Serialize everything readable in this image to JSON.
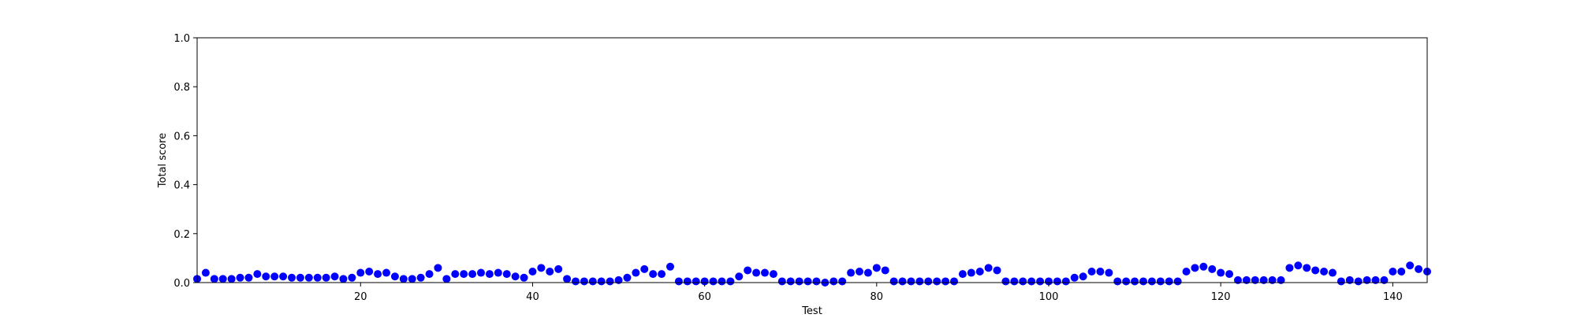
{
  "chart_data": {
    "type": "scatter",
    "title": "",
    "xlabel": "Test",
    "ylabel": "Total score",
    "xlim": [
      1,
      144
    ],
    "ylim": [
      0.0,
      1.0
    ],
    "xticks": [
      20,
      40,
      60,
      80,
      100,
      120,
      140
    ],
    "yticks": [
      0.0,
      0.2,
      0.4,
      0.6,
      0.8,
      1.0
    ],
    "xtick_labels": [
      "20",
      "40",
      "60",
      "80",
      "100",
      "120",
      "140"
    ],
    "ytick_labels": [
      "0.0",
      "0.2",
      "0.4",
      "0.6",
      "0.8",
      "1.0"
    ],
    "grid": false,
    "legend": "none",
    "marker_color": "#0000ff",
    "series": [
      {
        "x": [
          1,
          2,
          3,
          4,
          5,
          6,
          7,
          8,
          9,
          10,
          11,
          12,
          13,
          14,
          15,
          16,
          17,
          18,
          19,
          20,
          21,
          22,
          23,
          24,
          25,
          26,
          27,
          28,
          29,
          30,
          31,
          32,
          33,
          34,
          35,
          36,
          37,
          38,
          39,
          40,
          41,
          42,
          43,
          44,
          45,
          46,
          47,
          48,
          49,
          50,
          51,
          52,
          53,
          54,
          55,
          56,
          57,
          58,
          59,
          60,
          61,
          62,
          63,
          64,
          65,
          66,
          67,
          68,
          69,
          70,
          71,
          72,
          73,
          74,
          75,
          76,
          77,
          78,
          79,
          80,
          81,
          82,
          83,
          84,
          85,
          86,
          87,
          88,
          89,
          90,
          91,
          92,
          93,
          94,
          95,
          96,
          97,
          98,
          99,
          100,
          101,
          102,
          103,
          104,
          105,
          106,
          107,
          108,
          109,
          110,
          111,
          112,
          113,
          114,
          115,
          116,
          117,
          118,
          119,
          120,
          121,
          122,
          123,
          124,
          125,
          126,
          127,
          128,
          129,
          130,
          131,
          132,
          133,
          134,
          135,
          136,
          137,
          138,
          139,
          140,
          141,
          142,
          143,
          144
        ],
        "y": [
          0.015,
          0.04,
          0.015,
          0.015,
          0.015,
          0.02,
          0.02,
          0.035,
          0.025,
          0.025,
          0.025,
          0.02,
          0.02,
          0.02,
          0.02,
          0.02,
          0.025,
          0.015,
          0.02,
          0.04,
          0.045,
          0.035,
          0.04,
          0.025,
          0.015,
          0.015,
          0.02,
          0.035,
          0.06,
          0.015,
          0.035,
          0.035,
          0.035,
          0.04,
          0.035,
          0.04,
          0.035,
          0.025,
          0.02,
          0.045,
          0.06,
          0.045,
          0.055,
          0.015,
          0.005,
          0.005,
          0.005,
          0.005,
          0.005,
          0.01,
          0.02,
          0.04,
          0.055,
          0.035,
          0.035,
          0.065,
          0.005,
          0.005,
          0.005,
          0.005,
          0.005,
          0.005,
          0.005,
          0.025,
          0.05,
          0.04,
          0.04,
          0.035,
          0.005,
          0.005,
          0.005,
          0.005,
          0.005,
          0.0,
          0.005,
          0.005,
          0.04,
          0.045,
          0.04,
          0.06,
          0.05,
          0.005,
          0.005,
          0.005,
          0.005,
          0.005,
          0.005,
          0.005,
          0.005,
          0.035,
          0.04,
          0.045,
          0.06,
          0.05,
          0.005,
          0.005,
          0.005,
          0.005,
          0.005,
          0.005,
          0.005,
          0.005,
          0.02,
          0.025,
          0.045,
          0.045,
          0.04,
          0.005,
          0.005,
          0.005,
          0.005,
          0.005,
          0.005,
          0.005,
          0.005,
          0.045,
          0.06,
          0.065,
          0.055,
          0.04,
          0.035,
          0.01,
          0.01,
          0.01,
          0.01,
          0.01,
          0.01,
          0.06,
          0.07,
          0.06,
          0.05,
          0.045,
          0.04,
          0.005,
          0.01,
          0.005,
          0.01,
          0.01,
          0.01,
          0.045,
          0.045,
          0.07,
          0.055,
          0.045
        ]
      }
    ]
  }
}
